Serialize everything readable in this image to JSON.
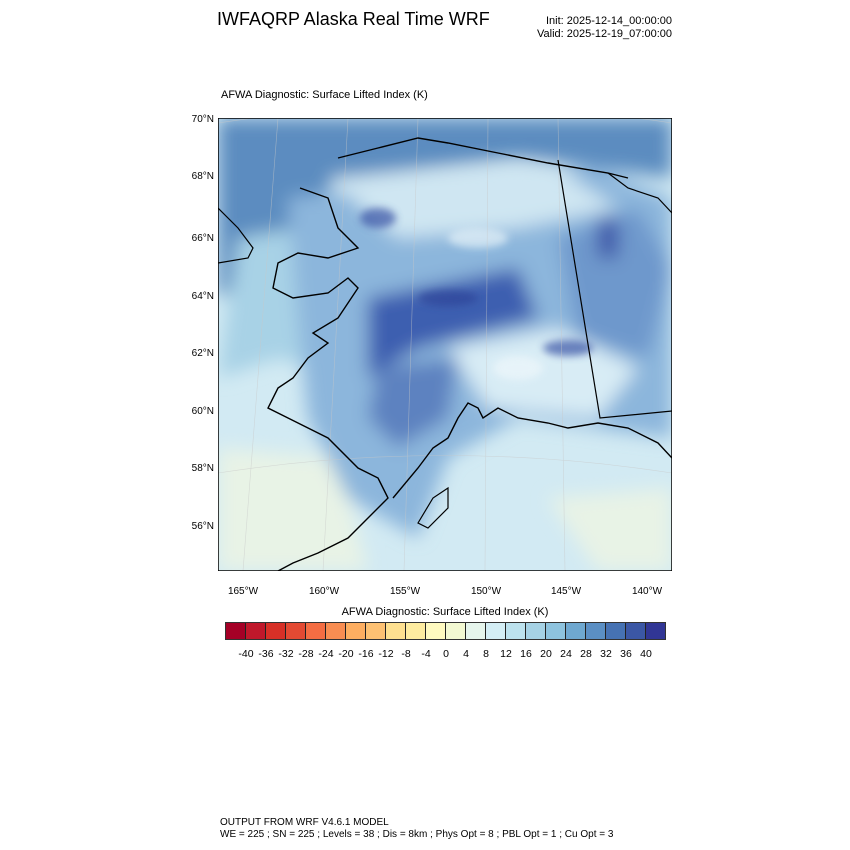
{
  "header": {
    "title": "IWFAQRP Alaska Real Time WRF",
    "init": "Init: 2025-12-14_00:00:00",
    "valid": "Valid: 2025-12-19_07:00:00"
  },
  "plot": {
    "subtitle": "AFWA Diagnostic: Surface Lifted Index   (K)",
    "lat_labels": [
      "70°N",
      "68°N",
      "66°N",
      "64°N",
      "62°N",
      "60°N",
      "58°N",
      "56°N"
    ],
    "lon_labels": [
      "165°W",
      "160°W",
      "155°W",
      "150°W",
      "145°W",
      "140°W"
    ]
  },
  "colorbar": {
    "title": "AFWA Diagnostic: Surface Lifted Index  (K)",
    "colors": [
      "#a50026",
      "#c0182b",
      "#d73027",
      "#e34a33",
      "#f46d43",
      "#f88d52",
      "#fdae61",
      "#fdc173",
      "#fee090",
      "#feeca0",
      "#fffac0",
      "#f3f9d2",
      "#e6f5ec",
      "#d4eef5",
      "#bde2ee",
      "#a6d2e5",
      "#8ec3de",
      "#6fa8d0",
      "#5b8fc4",
      "#4672b3",
      "#3b57a5",
      "#313695"
    ],
    "labels": [
      "-40",
      "-36",
      "-32",
      "-28",
      "-24",
      "-20",
      "-16",
      "-12",
      "-8",
      "-4",
      "0",
      "4",
      "8",
      "12",
      "16",
      "20",
      "24",
      "28",
      "32",
      "36",
      "40"
    ]
  },
  "footer": {
    "line1": "OUTPUT FROM WRF V4.6.1 MODEL",
    "line2": "WE = 225 ; SN = 225 ; Levels = 38 ; Dis = 8km ; Phys Opt = 8 ; PBL Opt = 1 ; Cu Opt = 3"
  }
}
